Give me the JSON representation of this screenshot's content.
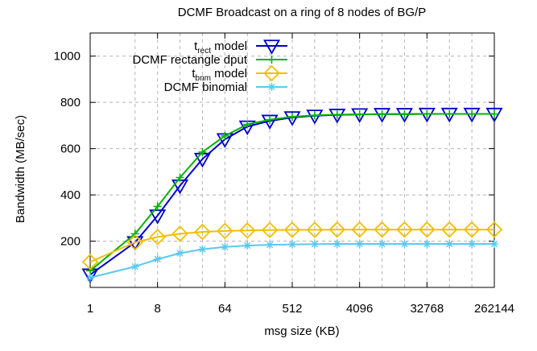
{
  "chart_data": {
    "type": "line",
    "title": "DCMF Broadcast on a ring of 8 nodes of BG/P",
    "xlabel": "msg size (KB)",
    "ylabel": "Bandwidth (MB/sec)",
    "x_scale": "log2",
    "xlim": [
      1,
      262144
    ],
    "ylim": [
      0,
      1100
    ],
    "grid": true,
    "legend_position": "top-right",
    "x_tick_labels": [
      "1",
      "8",
      "64",
      "512",
      "4096",
      "32768",
      "262144"
    ],
    "y_tick_labels": [
      "200",
      "400",
      "600",
      "800",
      "1000"
    ],
    "x": [
      1,
      4,
      8,
      16,
      32,
      64,
      128,
      256,
      512,
      1024,
      2048,
      4096,
      8192,
      16384,
      32768,
      65536,
      131072,
      262144
    ],
    "series": [
      {
        "name_main": "t",
        "name_sub": "rect",
        "name_rest": " model",
        "color": "#0000c8",
        "marker": "triangle-down-open",
        "values": [
          55,
          195,
          310,
          440,
          555,
          640,
          695,
          720,
          735,
          742,
          746,
          748,
          749,
          749,
          750,
          750,
          750,
          750
        ]
      },
      {
        "name_main": "DCMF rectangle dput",
        "name_sub": "",
        "name_rest": "",
        "color": "#00b400",
        "marker": "plus",
        "values": [
          72,
          232,
          350,
          475,
          585,
          655,
          705,
          725,
          738,
          744,
          747,
          748,
          749,
          749,
          750,
          750,
          750,
          750
        ]
      },
      {
        "name_main": "t",
        "name_sub": "bnm",
        "name_rest": " model",
        "color": "#f0c000",
        "marker": "diamond-open",
        "values": [
          110,
          195,
          218,
          232,
          240,
          244,
          246,
          248,
          249,
          249,
          250,
          250,
          250,
          250,
          250,
          250,
          250,
          250
        ]
      },
      {
        "name_main": "DCMF binomial",
        "name_sub": "",
        "name_rest": "",
        "color": "#5bc8f0",
        "marker": "star",
        "values": [
          42,
          90,
          122,
          148,
          165,
          175,
          181,
          184,
          186,
          187,
          188,
          188,
          188,
          188,
          188,
          188,
          188,
          188
        ]
      }
    ]
  }
}
